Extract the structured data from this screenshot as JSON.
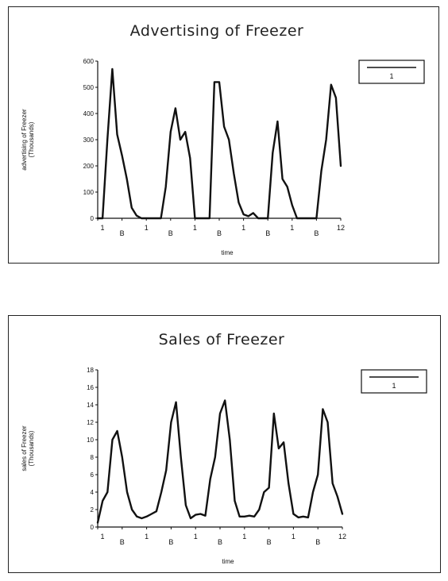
{
  "chart_data": [
    {
      "type": "line",
      "title": "Advertising of Freezer",
      "xlabel": "time",
      "ylabel": "advertising of Freezer",
      "ylabel_unit": "(Thousands)",
      "ylim": [
        0,
        600
      ],
      "yticks": [
        "0",
        "100",
        "200",
        "300",
        "400",
        "500",
        "600"
      ],
      "xlim": [
        1,
        12
      ],
      "xticks": [
        "1",
        "B",
        "1",
        "B",
        "1",
        "B",
        "1",
        "B",
        "1",
        "B",
        "12"
      ],
      "legend": {
        "position": "right",
        "entries": [
          "1"
        ]
      },
      "series": [
        {
          "name": "1",
          "x": [
            1,
            1.22,
            1.44,
            1.66,
            1.88,
            2.1,
            2.32,
            2.54,
            2.76,
            2.98,
            3.2,
            3.42,
            3.64,
            3.86,
            4.08,
            4.3,
            4.52,
            4.74,
            4.96,
            5.18,
            5.4,
            5.62,
            5.84,
            6.06,
            6.28,
            6.5,
            6.72,
            6.94,
            7.16,
            7.38,
            7.6,
            7.82,
            8.04,
            8.26,
            8.48,
            8.7,
            8.92,
            9.14,
            9.36,
            9.58,
            9.8,
            10.02,
            10.24,
            10.46,
            10.68,
            10.9,
            11.12,
            11.34,
            11.56,
            11.78,
            12
          ],
          "values": [
            0,
            0,
            300,
            570,
            320,
            240,
            150,
            40,
            10,
            0,
            0,
            0,
            0,
            0,
            120,
            330,
            420,
            300,
            330,
            230,
            0,
            0,
            0,
            0,
            520,
            520,
            350,
            300,
            170,
            60,
            15,
            8,
            20,
            0,
            0,
            0,
            250,
            370,
            150,
            120,
            50,
            0,
            0,
            0,
            0,
            0,
            180,
            300,
            510,
            460,
            200
          ]
        }
      ]
    },
    {
      "type": "line",
      "title": "Sales of Freezer",
      "xlabel": "time",
      "ylabel": "sales of Freezer",
      "ylabel_unit": "(Thousands)",
      "ylim": [
        0,
        18
      ],
      "yticks": [
        "0",
        "2",
        "4",
        "6",
        "8",
        "10",
        "12",
        "14",
        "16",
        "18"
      ],
      "xlim": [
        1,
        12
      ],
      "xticks": [
        "1",
        "B",
        "1",
        "B",
        "1",
        "B",
        "1",
        "B",
        "1",
        "B",
        "12"
      ],
      "legend": {
        "position": "right",
        "entries": [
          "1"
        ]
      },
      "series": [
        {
          "name": "1",
          "x": [
            1,
            1.22,
            1.44,
            1.66,
            1.88,
            2.1,
            2.32,
            2.54,
            2.76,
            2.98,
            3.2,
            3.42,
            3.64,
            3.86,
            4.08,
            4.3,
            4.52,
            4.74,
            4.96,
            5.18,
            5.4,
            5.62,
            5.84,
            6.06,
            6.28,
            6.5,
            6.72,
            6.94,
            7.16,
            7.38,
            7.6,
            7.82,
            8.04,
            8.26,
            8.48,
            8.7,
            8.92,
            9.14,
            9.36,
            9.58,
            9.8,
            10.02,
            10.24,
            10.46,
            10.68,
            10.9,
            11.12,
            11.34,
            11.56,
            11.78,
            12
          ],
          "values": [
            0.5,
            3,
            4,
            10,
            11,
            8,
            4,
            2,
            1.2,
            1,
            1.2,
            1.5,
            1.8,
            4,
            6.5,
            12,
            14.3,
            8,
            2.5,
            1,
            1.4,
            1.5,
            1.3,
            5.5,
            8,
            13,
            14.5,
            10,
            3,
            1.2,
            1.2,
            1.3,
            1.2,
            2,
            4,
            4.5,
            13,
            9,
            9.7,
            5,
            1.5,
            1.1,
            1.2,
            1.1,
            4,
            6,
            13.5,
            12,
            5,
            3.5,
            1.5
          ]
        }
      ]
    }
  ]
}
